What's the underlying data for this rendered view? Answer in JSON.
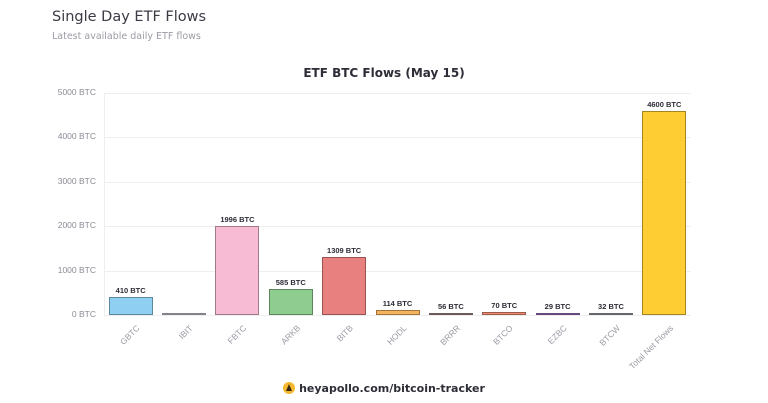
{
  "header": {
    "title": "Single Day ETF Flows",
    "subtitle": "Latest available daily ETF flows"
  },
  "footer": {
    "icon": "apollo-logo-icon",
    "text": "heyapollo.com/bitcoin-tracker"
  },
  "chart_data": {
    "type": "bar",
    "title": "ETF BTC Flows (May 15)",
    "xlabel": "",
    "ylabel": "",
    "ylim": [
      0,
      5000
    ],
    "grid": true,
    "legend": null,
    "y_ticks": [
      "0 BTC",
      "1000 BTC",
      "2000 BTC",
      "3000 BTC",
      "4000 BTC",
      "5000 BTC"
    ],
    "categories": [
      "GBTC",
      "IBIT",
      "FBTC",
      "ARKB",
      "BITB",
      "HODL",
      "BRRR",
      "BTCO",
      "EZBC",
      "BTCW",
      "Total Net Flows"
    ],
    "values": [
      410,
      0,
      1996,
      585,
      1309,
      114,
      56,
      70,
      29,
      32,
      4600
    ],
    "value_labels": [
      "410 BTC",
      "",
      "1996 BTC",
      "585 BTC",
      "1309 BTC",
      "114 BTC",
      "56 BTC",
      "70 BTC",
      "29 BTC",
      "32 BTC",
      "4600 BTC"
    ],
    "colors": [
      "#8fd0f2",
      "#c9c9d6",
      "#f7bcd3",
      "#8fcc8f",
      "#e88080",
      "#f5b35e",
      "#a88a86",
      "#f08a70",
      "#a070c0",
      "#9aa0a8",
      "#fdcd33"
    ]
  }
}
